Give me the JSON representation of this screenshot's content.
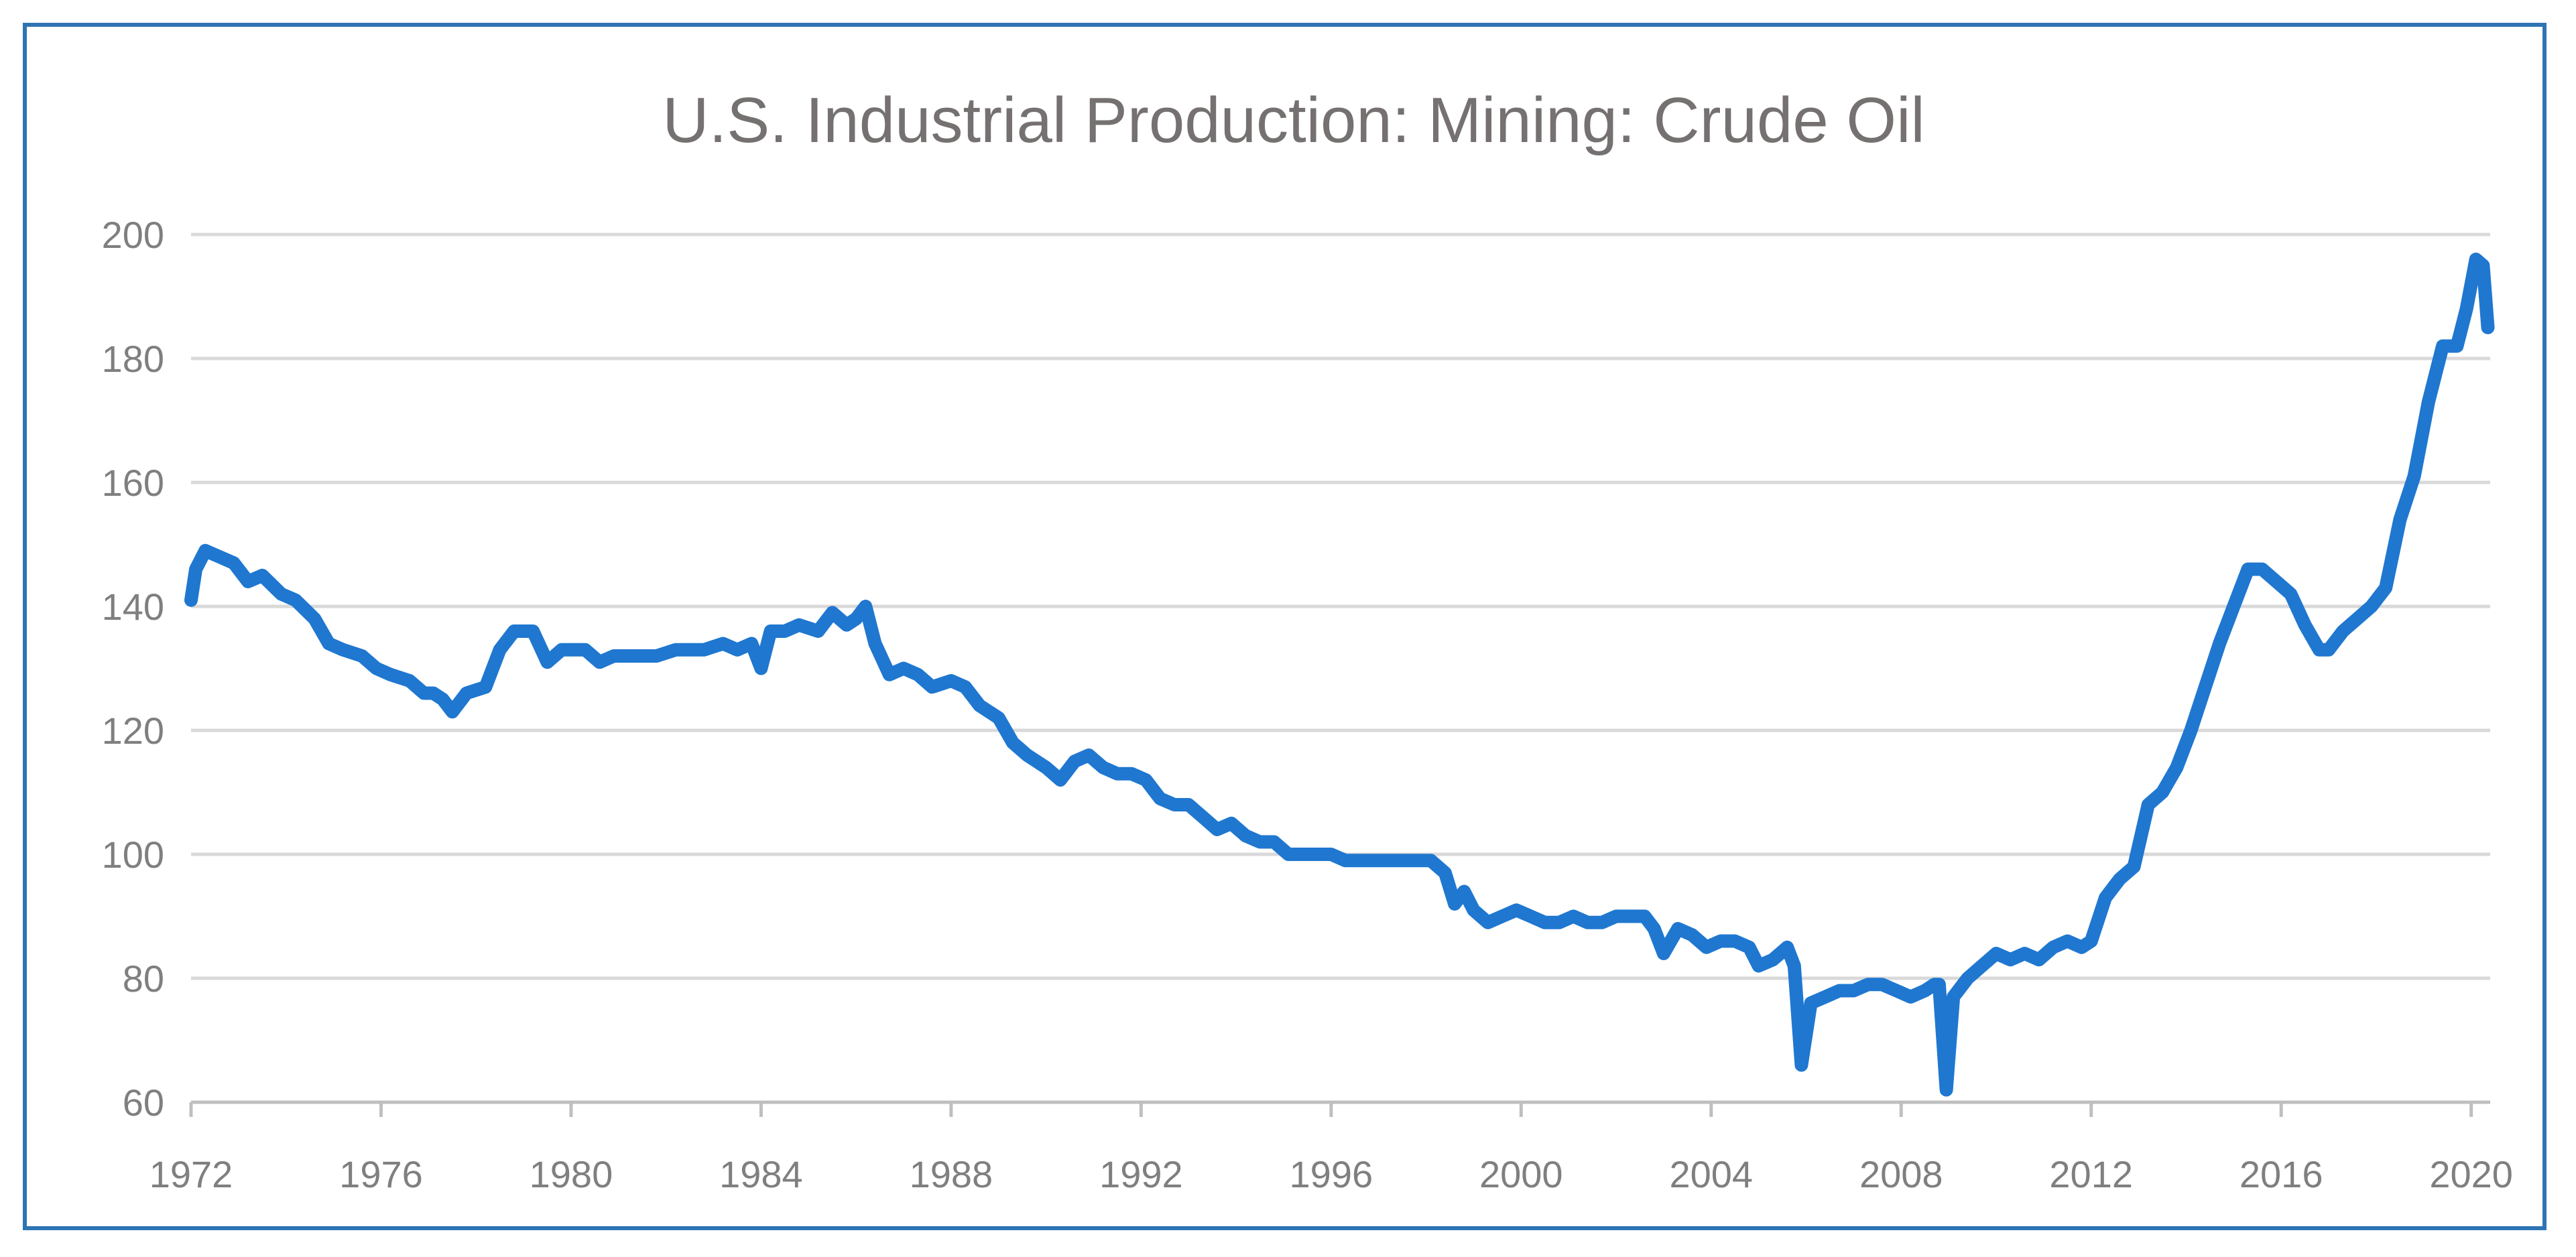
{
  "chart_data": {
    "type": "line",
    "title": "U.S. Industrial Production: Mining: Crude Oil",
    "xlabel": "",
    "ylabel": "",
    "xlim": [
      1972,
      2020.4
    ],
    "ylim": [
      60,
      200
    ],
    "grid": true,
    "legend": "none",
    "line_color": "#1f77d0",
    "y_ticks": [
      60,
      80,
      100,
      120,
      140,
      160,
      180,
      200
    ],
    "x_ticks": [
      1972,
      1976,
      1980,
      1984,
      1988,
      1992,
      1996,
      2000,
      2004,
      2008,
      2012,
      2016,
      2020
    ],
    "series": [
      {
        "name": "Crude Oil",
        "x": [
          1972.0,
          1972.1,
          1972.3,
          1972.6,
          1972.9,
          1973.2,
          1973.5,
          1973.9,
          1974.2,
          1974.6,
          1974.9,
          1975.2,
          1975.6,
          1975.9,
          1976.2,
          1976.6,
          1976.9,
          1977.1,
          1977.3,
          1977.5,
          1977.8,
          1978.2,
          1978.5,
          1978.8,
          1979.2,
          1979.5,
          1979.8,
          1980.0,
          1980.3,
          1980.6,
          1980.9,
          1981.2,
          1981.5,
          1981.8,
          1982.2,
          1982.5,
          1982.8,
          1983.2,
          1983.5,
          1983.8,
          1984.0,
          1984.2,
          1984.5,
          1984.8,
          1985.2,
          1985.5,
          1985.8,
          1986.0,
          1986.2,
          1986.4,
          1986.7,
          1987.0,
          1987.3,
          1987.6,
          1988.0,
          1988.3,
          1988.6,
          1989.0,
          1989.3,
          1989.6,
          1990.0,
          1990.3,
          1990.6,
          1990.9,
          1991.2,
          1991.5,
          1991.8,
          1992.1,
          1992.4,
          1992.7,
          1993.0,
          1993.3,
          1993.6,
          1993.9,
          1994.2,
          1994.5,
          1994.8,
          1995.1,
          1995.4,
          1995.7,
          1996.0,
          1996.3,
          1996.6,
          1996.9,
          1997.2,
          1997.5,
          1997.8,
          1998.1,
          1998.4,
          1998.6,
          1998.8,
          1999.0,
          1999.3,
          1999.6,
          1999.9,
          2000.2,
          2000.5,
          2000.8,
          2001.1,
          2001.4,
          2001.7,
          2002.0,
          2002.3,
          2002.6,
          2002.8,
          2003.0,
          2003.3,
          2003.6,
          2003.9,
          2004.2,
          2004.5,
          2004.8,
          2005.0,
          2005.3,
          2005.6,
          2005.75,
          2005.9,
          2006.1,
          2006.4,
          2006.7,
          2007.0,
          2007.3,
          2007.6,
          2007.9,
          2008.2,
          2008.5,
          2008.7,
          2008.8,
          2008.95,
          2009.1,
          2009.4,
          2009.7,
          2010.0,
          2010.3,
          2010.6,
          2010.9,
          2011.2,
          2011.5,
          2011.8,
          2012.0,
          2012.3,
          2012.6,
          2012.9,
          2013.2,
          2013.5,
          2013.8,
          2014.1,
          2014.4,
          2014.7,
          2015.0,
          2015.3,
          2015.6,
          2015.9,
          2016.2,
          2016.5,
          2016.8,
          2017.0,
          2017.3,
          2017.6,
          2017.9,
          2018.2,
          2018.5,
          2018.8,
          2019.1,
          2019.4,
          2019.7,
          2019.9,
          2020.1,
          2020.25,
          2020.35
        ],
        "y": [
          141,
          146,
          149,
          148,
          147,
          144,
          145,
          142,
          141,
          138,
          134,
          133,
          132,
          130,
          129,
          128,
          126,
          126,
          125,
          123,
          126,
          127,
          133,
          136,
          136,
          131,
          133,
          133,
          133,
          131,
          132,
          132,
          132,
          132,
          133,
          133,
          133,
          134,
          133,
          134,
          130,
          136,
          136,
          137,
          136,
          139,
          137,
          138,
          140,
          134,
          129,
          130,
          129,
          127,
          128,
          127,
          124,
          122,
          118,
          116,
          114,
          112,
          115,
          116,
          114,
          113,
          113,
          112,
          109,
          108,
          108,
          106,
          104,
          105,
          103,
          102,
          102,
          100,
          100,
          100,
          100,
          99,
          99,
          99,
          99,
          99,
          99,
          99,
          97,
          92,
          94,
          91,
          89,
          90,
          91,
          90,
          89,
          89,
          90,
          89,
          89,
          90,
          90,
          90,
          88,
          84,
          88,
          87,
          85,
          86,
          86,
          85,
          82,
          83,
          85,
          82,
          66,
          76,
          77,
          78,
          78,
          79,
          79,
          78,
          77,
          78,
          79,
          79,
          62,
          77,
          80,
          82,
          84,
          83,
          84,
          83,
          85,
          86,
          85,
          86,
          93,
          96,
          98,
          108,
          110,
          114,
          120,
          127,
          134,
          140,
          146,
          146,
          144,
          142,
          137,
          133,
          133,
          136,
          138,
          140,
          143,
          154,
          161,
          173,
          182,
          182,
          188,
          196,
          195,
          185
        ]
      }
    ]
  }
}
